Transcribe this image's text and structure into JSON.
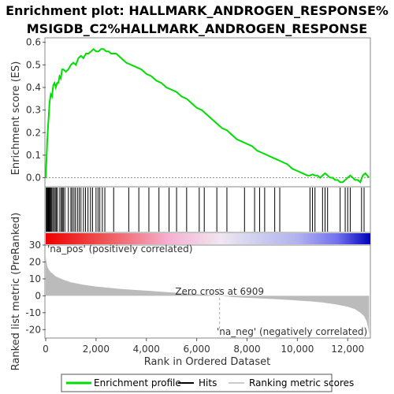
{
  "title_line1": "Enrichment plot: HALLMARK_ANDROGEN_RESPONSE%",
  "title_line2": "MSIGDB_C2%HALLMARK_ANDROGEN_RESPONSE",
  "colors": {
    "es_line": "#00dd00",
    "hits": "#000000",
    "metric_fill": "#bbbbbb",
    "pos_label": "#cc0000",
    "neg_label": "#0000cc",
    "zero_line": "#aaaaaa"
  },
  "chart_data": [
    {
      "type": "line",
      "name": "enrichment-profile",
      "ylabel": "Enrichment score (ES)",
      "xlim": [
        0,
        12900
      ],
      "ylim": [
        -0.04,
        0.62
      ],
      "yticks": [
        0.0,
        0.1,
        0.2,
        0.3,
        0.4,
        0.5,
        0.6
      ],
      "ytick_labels": [
        "0.0",
        "0.1",
        "0.2",
        "0.3",
        "0.4",
        "0.5",
        "0.6"
      ],
      "x": [
        0,
        30,
        60,
        90,
        120,
        150,
        200,
        250,
        300,
        350,
        400,
        450,
        500,
        550,
        600,
        650,
        700,
        800,
        900,
        1000,
        1100,
        1200,
        1300,
        1400,
        1500,
        1600,
        1700,
        1800,
        1900,
        2000,
        2100,
        2200,
        2300,
        2400,
        2500,
        2600,
        2700,
        2800,
        3000,
        3200,
        3400,
        3600,
        3800,
        4000,
        4200,
        4400,
        4600,
        4800,
        5000,
        5200,
        5400,
        5600,
        5800,
        6000,
        6200,
        6400,
        6600,
        6800,
        7000,
        7200,
        7400,
        7600,
        7800,
        8000,
        8200,
        8400,
        8600,
        8800,
        9000,
        9200,
        9400,
        9600,
        9800,
        10000,
        10200,
        10400,
        10500,
        10600,
        10700,
        10800,
        10900,
        11000,
        11100,
        11200,
        11300,
        11400,
        11500,
        11600,
        11700,
        11800,
        11900,
        12000,
        12100,
        12200,
        12300,
        12400,
        12500,
        12600,
        12700,
        12850
      ],
      "y": [
        0.0,
        0.08,
        0.16,
        0.22,
        0.27,
        0.33,
        0.37,
        0.36,
        0.41,
        0.42,
        0.4,
        0.42,
        0.42,
        0.45,
        0.44,
        0.48,
        0.48,
        0.47,
        0.48,
        0.5,
        0.51,
        0.5,
        0.53,
        0.54,
        0.53,
        0.55,
        0.55,
        0.56,
        0.57,
        0.56,
        0.56,
        0.57,
        0.57,
        0.56,
        0.56,
        0.55,
        0.55,
        0.55,
        0.53,
        0.51,
        0.5,
        0.49,
        0.48,
        0.46,
        0.45,
        0.43,
        0.42,
        0.4,
        0.39,
        0.38,
        0.36,
        0.35,
        0.33,
        0.31,
        0.3,
        0.28,
        0.26,
        0.24,
        0.22,
        0.21,
        0.19,
        0.17,
        0.16,
        0.15,
        0.14,
        0.12,
        0.11,
        0.1,
        0.09,
        0.08,
        0.07,
        0.06,
        0.04,
        0.03,
        0.02,
        0.01,
        0.01,
        0.015,
        0.01,
        0.01,
        0.0,
        0.01,
        0.02,
        0.01,
        0.0,
        0.0,
        -0.01,
        -0.01,
        -0.02,
        -0.02,
        -0.01,
        0.0,
        0.01,
        0.0,
        -0.01,
        -0.01,
        -0.02,
        0.01,
        0.02,
        0.0
      ]
    },
    {
      "type": "scatter",
      "name": "hits",
      "x": [
        20,
        50,
        80,
        110,
        140,
        170,
        200,
        240,
        280,
        330,
        380,
        420,
        470,
        560,
        620,
        660,
        700,
        760,
        900,
        1000,
        1050,
        1120,
        1180,
        1260,
        1330,
        1400,
        1500,
        1580,
        1680,
        1780,
        1860,
        2000,
        2080,
        2150,
        2250,
        2350,
        2700,
        3300,
        3700,
        4100,
        4500,
        4900,
        5200,
        5600,
        6100,
        6300,
        6800,
        7200,
        7900,
        8300,
        8500,
        8700,
        9100,
        9300,
        10500,
        10600,
        10700,
        11000,
        11100,
        11200,
        11700,
        11900,
        12000,
        12100,
        12550,
        12650
      ]
    },
    {
      "type": "area",
      "name": "ranked-list-metric",
      "ylabel": "Ranked list metric (PreRanked)",
      "xlabel": "Rank in Ordered Dataset",
      "xlim": [
        0,
        12900
      ],
      "ylim": [
        -25,
        30
      ],
      "yticks": [
        -20,
        -10,
        0,
        10,
        20,
        30
      ],
      "ytick_labels": [
        "-20",
        "-10",
        "0",
        "10",
        "20",
        "30"
      ],
      "xticks": [
        0,
        2000,
        4000,
        6000,
        8000,
        10000,
        12000
      ],
      "xtick_labels": [
        "0",
        "2,000",
        "4,000",
        "6,000",
        "8,000",
        "10,000",
        "12,000"
      ],
      "x": [
        0,
        50,
        100,
        200,
        400,
        700,
        1000,
        1500,
        2000,
        3000,
        4000,
        5000,
        6000,
        6909,
        7500,
        8500,
        9500,
        10500,
        11000,
        11500,
        12000,
        12300,
        12500,
        12650,
        12750,
        12800,
        12850
      ],
      "y": [
        23,
        18,
        16,
        14,
        11.5,
        9.5,
        8,
        6.5,
        5.5,
        4,
        3,
        2,
        1,
        0,
        -0.8,
        -1.5,
        -2.3,
        -3.3,
        -4,
        -5,
        -6.5,
        -8,
        -10,
        -12,
        -15,
        -18,
        -23
      ],
      "zero_cross_label": "Zero cross at 6909",
      "pos_label": "'na_pos' (positively correlated)",
      "neg_label": "'na_neg' (negatively correlated)"
    }
  ],
  "legend": {
    "items": [
      {
        "label": "Enrichment profile",
        "color": "#00dd00"
      },
      {
        "label": "Hits",
        "color": "#000000"
      },
      {
        "label": "Ranking metric scores",
        "color": "#cccccc"
      }
    ]
  }
}
